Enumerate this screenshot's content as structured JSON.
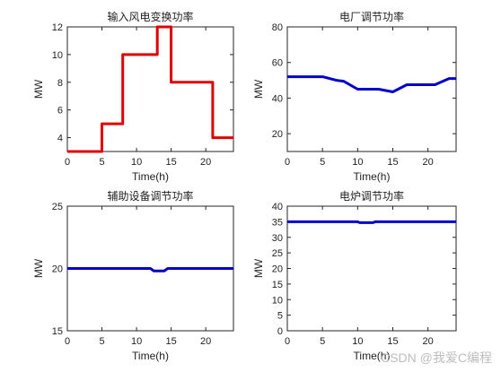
{
  "chart_data": [
    {
      "type": "line",
      "title": "输入风电变换功率",
      "xlabel": "Time(h)",
      "ylabel": "MW",
      "xlim": [
        0,
        24
      ],
      "ylim": [
        3,
        12
      ],
      "xticks": [
        0,
        5,
        10,
        15,
        20
      ],
      "yticks": [
        4,
        6,
        8,
        10,
        12
      ],
      "grid": false,
      "series": [
        {
          "color": "#e00000",
          "x": [
            0,
            5,
            5,
            8,
            8,
            13,
            13,
            15,
            15,
            21,
            21,
            24
          ],
          "y": [
            3,
            3,
            5,
            5,
            10,
            10,
            12,
            12,
            8,
            8,
            4,
            4
          ]
        }
      ]
    },
    {
      "type": "line",
      "title": "电厂调节功率",
      "xlabel": "Time(h)",
      "ylabel": "MW",
      "xlim": [
        0,
        24
      ],
      "ylim": [
        10,
        80
      ],
      "xticks": [
        0,
        5,
        10,
        15,
        20
      ],
      "yticks": [
        20,
        40,
        60,
        80
      ],
      "grid": false,
      "series": [
        {
          "color": "#0000cc",
          "x": [
            0,
            5,
            7,
            8,
            10,
            13,
            15,
            17,
            21,
            23,
            24
          ],
          "y": [
            52,
            52,
            50,
            49.5,
            45,
            45,
            43.5,
            47.5,
            47.5,
            51,
            51
          ]
        }
      ]
    },
    {
      "type": "line",
      "title": "辅助设备调节功率",
      "xlabel": "Time(h)",
      "ylabel": "MW",
      "xlim": [
        0,
        24
      ],
      "ylim": [
        15,
        25
      ],
      "xticks": [
        0,
        5,
        10,
        15,
        20
      ],
      "yticks": [
        15,
        20,
        25
      ],
      "grid": false,
      "series": [
        {
          "color": "#0000cc",
          "x": [
            0,
            12,
            12.5,
            14,
            14.5,
            24
          ],
          "y": [
            20,
            20,
            19.8,
            19.8,
            20,
            20
          ]
        }
      ]
    },
    {
      "type": "line",
      "title": "电炉调节功率",
      "xlabel": "Time(h)",
      "ylabel": "MW",
      "xlim": [
        0,
        24
      ],
      "ylim": [
        0,
        40
      ],
      "xticks": [
        0,
        5,
        10,
        15,
        20
      ],
      "yticks": [
        0,
        5,
        10,
        15,
        20,
        25,
        30,
        35,
        40
      ],
      "grid": false,
      "series": [
        {
          "color": "#0000cc",
          "x": [
            0,
            10,
            10.3,
            12.2,
            12.5,
            24
          ],
          "y": [
            35,
            35,
            34.7,
            34.7,
            35,
            35
          ]
        }
      ]
    }
  ],
  "watermark": "CSDN @我爱C编程"
}
